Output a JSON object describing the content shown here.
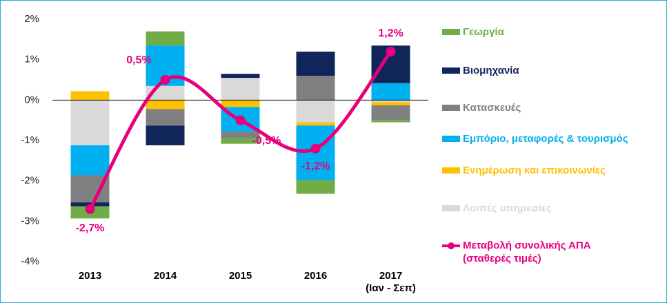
{
  "chart_data": {
    "type": "bar",
    "categories": [
      "2013",
      "2014",
      "2015",
      "2016",
      "2017\n(Ιαν - Σεπ)"
    ],
    "stacked": true,
    "series": [
      {
        "name": "Γεωργία",
        "color": "#70ad47",
        "values": [
          -0.3,
          0.35,
          -0.13,
          -0.34,
          -0.05
        ]
      },
      {
        "name": "Βιομηχανία",
        "color": "#10265a",
        "values": [
          -0.1,
          -0.49,
          0.1,
          0.6,
          0.93
        ]
      },
      {
        "name": "Κατασκευές",
        "color": "#808080",
        "values": [
          -0.67,
          -0.41,
          -0.17,
          0.6,
          -0.37
        ]
      },
      {
        "name": "Εμπόριο, μεταφορές & τουρισμός",
        "color": "#00b0f0",
        "values": [
          -0.74,
          1.0,
          -0.61,
          -1.35,
          0.42
        ]
      },
      {
        "name": "Ενημέρωση και επικοινωνίες",
        "color": "#ffc000",
        "values": [
          0.22,
          -0.22,
          -0.17,
          -0.08,
          -0.08
        ]
      },
      {
        "name": "Λοιπές υπηρεσίες",
        "color": "#d9d9d9",
        "values": [
          -1.12,
          0.35,
          0.55,
          -0.55,
          -0.05
        ]
      },
      {
        "name": "Μεταβολή συνολικής ΑΠΑ\n(σταθερές τιμές)",
        "color": "#e6007e",
        "type": "line",
        "smooth": true,
        "values": [
          -2.7,
          0.5,
          -0.5,
          -1.2,
          1.2
        ],
        "value_labels": [
          "-2,7%",
          "0,5%",
          "-0,5%",
          "-1,2%",
          "1,2%"
        ]
      }
    ],
    "ylim": [
      -4,
      2
    ],
    "yticks": [
      {
        "value": -4,
        "label": "-4%"
      },
      {
        "value": -3,
        "label": "-3%"
      },
      {
        "value": -2,
        "label": "-2%"
      },
      {
        "value": -1,
        "label": "-1%"
      },
      {
        "value": 0,
        "label": "0%"
      },
      {
        "value": 1,
        "label": "1%"
      },
      {
        "value": 2,
        "label": "2%"
      }
    ],
    "legend": "right"
  }
}
